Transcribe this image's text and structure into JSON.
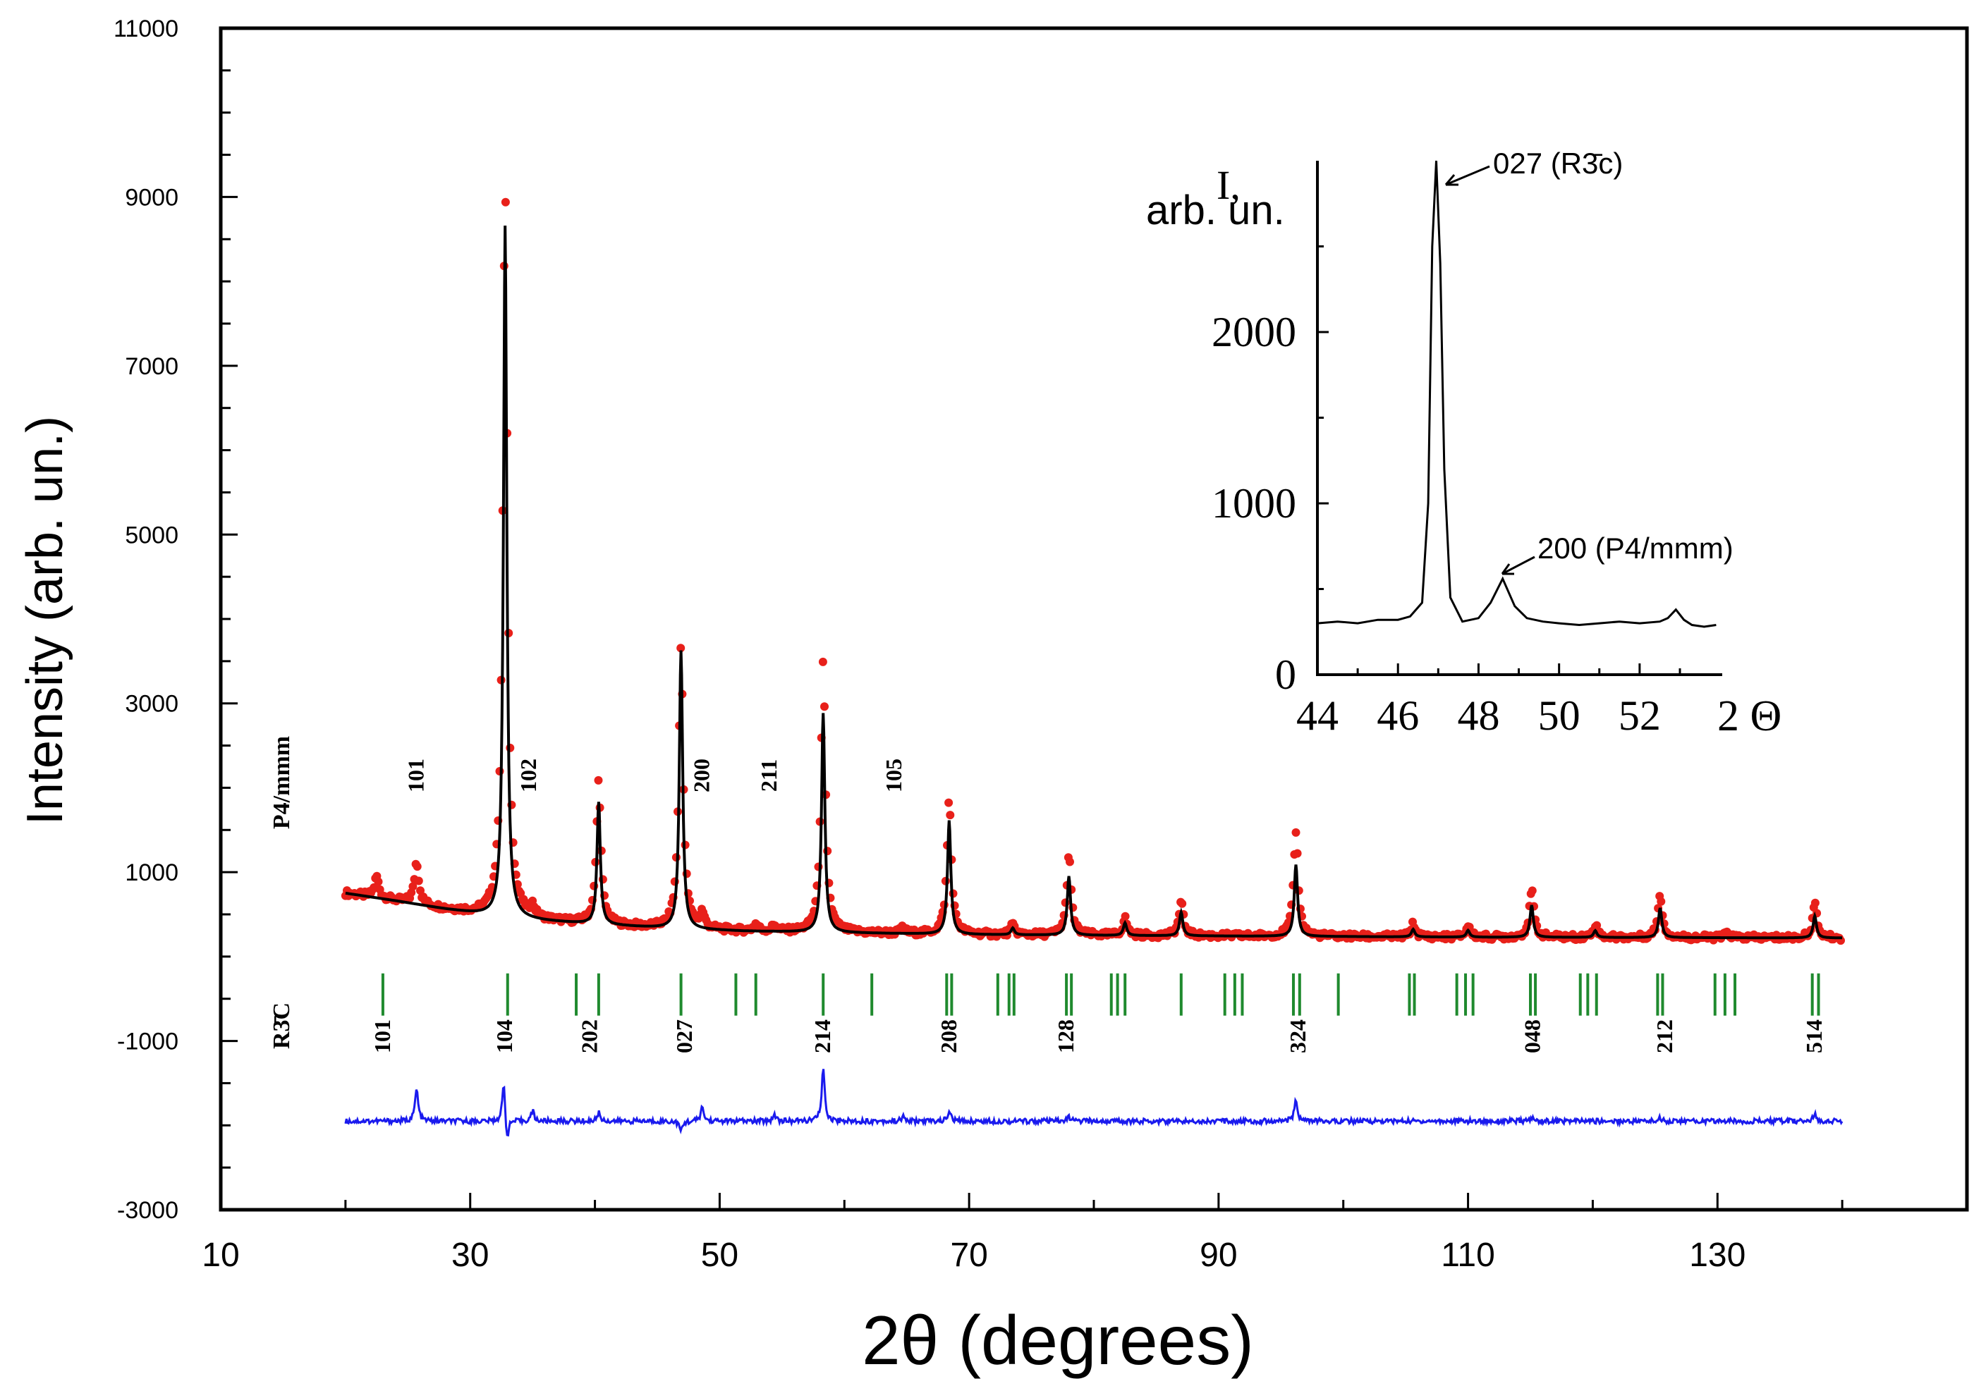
{
  "chart_data": [
    {
      "type": "line",
      "title": "",
      "xlabel": "2θ (degrees)",
      "ylabel": "Intensity (arb. un.)",
      "xlim": [
        10,
        150
      ],
      "ylim": [
        -3000,
        11000
      ],
      "x_ticks": [
        10,
        30,
        50,
        70,
        90,
        110,
        130
      ],
      "y_ticks": [
        -3000,
        -1000,
        1000,
        3000,
        5000,
        7000,
        9000,
        11000
      ],
      "legend": "none",
      "colors": {
        "observed": "#e8201a",
        "calculated": "#000000",
        "difference": "#1a1aee",
        "tick_marks": "#1f8a2e"
      },
      "baseline": [
        [
          20,
          750
        ],
        [
          24,
          660
        ],
        [
          28,
          560
        ],
        [
          32,
          470
        ],
        [
          36,
          420
        ],
        [
          40,
          380
        ],
        [
          46,
          330
        ],
        [
          52,
          300
        ],
        [
          60,
          280
        ],
        [
          70,
          260
        ],
        [
          80,
          250
        ],
        [
          95,
          240
        ],
        [
          110,
          230
        ],
        [
          125,
          225
        ],
        [
          140,
          220
        ]
      ],
      "series": [
        {
          "name": "observed",
          "style": "points",
          "peaks": [
            {
              "x": 22.5,
              "y": 250
            },
            {
              "x": 25.7,
              "y": 500
            },
            {
              "x": 32.8,
              "y": 8750
            },
            {
              "x": 35.0,
              "y": 120
            },
            {
              "x": 40.3,
              "y": 1700
            },
            {
              "x": 46.9,
              "y": 3350
            },
            {
              "x": 48.6,
              "y": 180
            },
            {
              "x": 52.9,
              "y": 80
            },
            {
              "x": 54.4,
              "y": 70
            },
            {
              "x": 58.3,
              "y": 3200
            },
            {
              "x": 64.7,
              "y": 60
            },
            {
              "x": 68.4,
              "y": 1600
            },
            {
              "x": 73.5,
              "y": 110
            },
            {
              "x": 78.0,
              "y": 950
            },
            {
              "x": 82.5,
              "y": 200
            },
            {
              "x": 87.0,
              "y": 400
            },
            {
              "x": 96.2,
              "y": 1250
            },
            {
              "x": 105.6,
              "y": 150
            },
            {
              "x": 110.0,
              "y": 130
            },
            {
              "x": 115.1,
              "y": 560
            },
            {
              "x": 120.2,
              "y": 150
            },
            {
              "x": 125.4,
              "y": 510
            },
            {
              "x": 130.8,
              "y": 60
            },
            {
              "x": 137.8,
              "y": 400
            }
          ]
        },
        {
          "name": "calculated",
          "style": "line",
          "peaks": [
            {
              "x": 32.8,
              "y": 8200
            },
            {
              "x": 40.3,
              "y": 1450
            },
            {
              "x": 46.9,
              "y": 3300
            },
            {
              "x": 58.3,
              "y": 2600
            },
            {
              "x": 68.4,
              "y": 1350
            },
            {
              "x": 73.5,
              "y": 80
            },
            {
              "x": 78.0,
              "y": 700
            },
            {
              "x": 82.5,
              "y": 150
            },
            {
              "x": 87.0,
              "y": 280
            },
            {
              "x": 96.2,
              "y": 850
            },
            {
              "x": 105.6,
              "y": 90
            },
            {
              "x": 110.0,
              "y": 80
            },
            {
              "x": 115.1,
              "y": 380
            },
            {
              "x": 120.2,
              "y": 80
            },
            {
              "x": 125.4,
              "y": 350
            },
            {
              "x": 137.8,
              "y": 260
            }
          ]
        },
        {
          "name": "difference",
          "style": "line",
          "offset": -1950,
          "x_range": [
            20,
            140
          ],
          "features": [
            {
              "x": 25.7,
              "y": 380
            },
            {
              "x": 32.7,
              "y": 500
            },
            {
              "x": 32.95,
              "y": -300
            },
            {
              "x": 35.0,
              "y": 120
            },
            {
              "x": 40.3,
              "y": 100
            },
            {
              "x": 46.9,
              "y": -120
            },
            {
              "x": 48.6,
              "y": 160
            },
            {
              "x": 54.4,
              "y": 80
            },
            {
              "x": 58.3,
              "y": 600
            },
            {
              "x": 64.7,
              "y": 50
            },
            {
              "x": 68.4,
              "y": 120
            },
            {
              "x": 78.0,
              "y": 50
            },
            {
              "x": 96.2,
              "y": 250
            },
            {
              "x": 115.1,
              "y": 40
            },
            {
              "x": 125.4,
              "y": 40
            },
            {
              "x": 137.8,
              "y": 80
            }
          ]
        }
      ],
      "tick_marks": [
        23,
        33,
        38.5,
        40.3,
        46.9,
        51.3,
        52.9,
        58.3,
        62.2,
        68.2,
        68.6,
        72.3,
        73.2,
        73.6,
        77.8,
        78.2,
        81.4,
        81.9,
        82.5,
        87.0,
        90.5,
        91.3,
        91.9,
        96.0,
        96.5,
        99.6,
        105.3,
        105.7,
        109.1,
        109.8,
        110.4,
        115.0,
        115.4,
        119.0,
        119.6,
        120.3,
        125.2,
        125.6,
        129.8,
        130.6,
        131.4,
        137.6,
        138.1
      ],
      "phase_labels": {
        "p4mmm": "P4/mmm",
        "r3c": "R3̄C"
      },
      "p4mmm_hkl": [
        {
          "x": 25.7,
          "label": "101"
        },
        {
          "x": 34.7,
          "label": "102"
        },
        {
          "x": 48.6,
          "label": "200"
        },
        {
          "x": 54.0,
          "label": "211"
        },
        {
          "x": 64.0,
          "label": "105"
        }
      ],
      "r3c_hkl": [
        {
          "x": 23.0,
          "label": "101"
        },
        {
          "x": 32.8,
          "label": "104"
        },
        {
          "x": 39.6,
          "label": "202"
        },
        {
          "x": 47.2,
          "label": "027"
        },
        {
          "x": 58.3,
          "label": "214"
        },
        {
          "x": 68.4,
          "label": "208"
        },
        {
          "x": 77.8,
          "label": "128"
        },
        {
          "x": 96.4,
          "label": "324"
        },
        {
          "x": 115.2,
          "label": "048"
        },
        {
          "x": 125.8,
          "label": "212"
        },
        {
          "x": 137.8,
          "label": "514"
        }
      ]
    },
    {
      "type": "line",
      "title": "",
      "xlabel": "2 Θ",
      "ylabel": "I, arb. un.",
      "ylabel_lines": [
        "I,",
        "arb. un."
      ],
      "xlim": [
        44,
        54
      ],
      "ylim": [
        0,
        3000
      ],
      "x_ticks": [
        44,
        46,
        48,
        50,
        52
      ],
      "y_ticks": [
        0,
        1000,
        2000
      ],
      "legend": "none",
      "series": [
        {
          "name": "intensity",
          "x": [
            44.0,
            44.5,
            45.0,
            45.5,
            46.0,
            46.3,
            46.6,
            46.75,
            46.85,
            46.95,
            47.05,
            47.15,
            47.3,
            47.6,
            48.0,
            48.3,
            48.6,
            48.9,
            49.2,
            49.6,
            50.0,
            50.5,
            51.0,
            51.5,
            52.0,
            52.5,
            52.7,
            52.9,
            53.1,
            53.3,
            53.6,
            53.9
          ],
          "y": [
            300,
            310,
            300,
            320,
            320,
            340,
            420,
            1000,
            2500,
            3000,
            2400,
            1200,
            450,
            310,
            330,
            420,
            560,
            400,
            330,
            310,
            300,
            290,
            300,
            310,
            300,
            310,
            330,
            380,
            320,
            290,
            280,
            290
          ]
        }
      ],
      "annotations": [
        {
          "text": "027 (R3̄c)",
          "x": 47.0,
          "y": 2900
        },
        {
          "text": "200 (P4/mmm)",
          "x": 48.5,
          "y": 560
        }
      ]
    }
  ]
}
